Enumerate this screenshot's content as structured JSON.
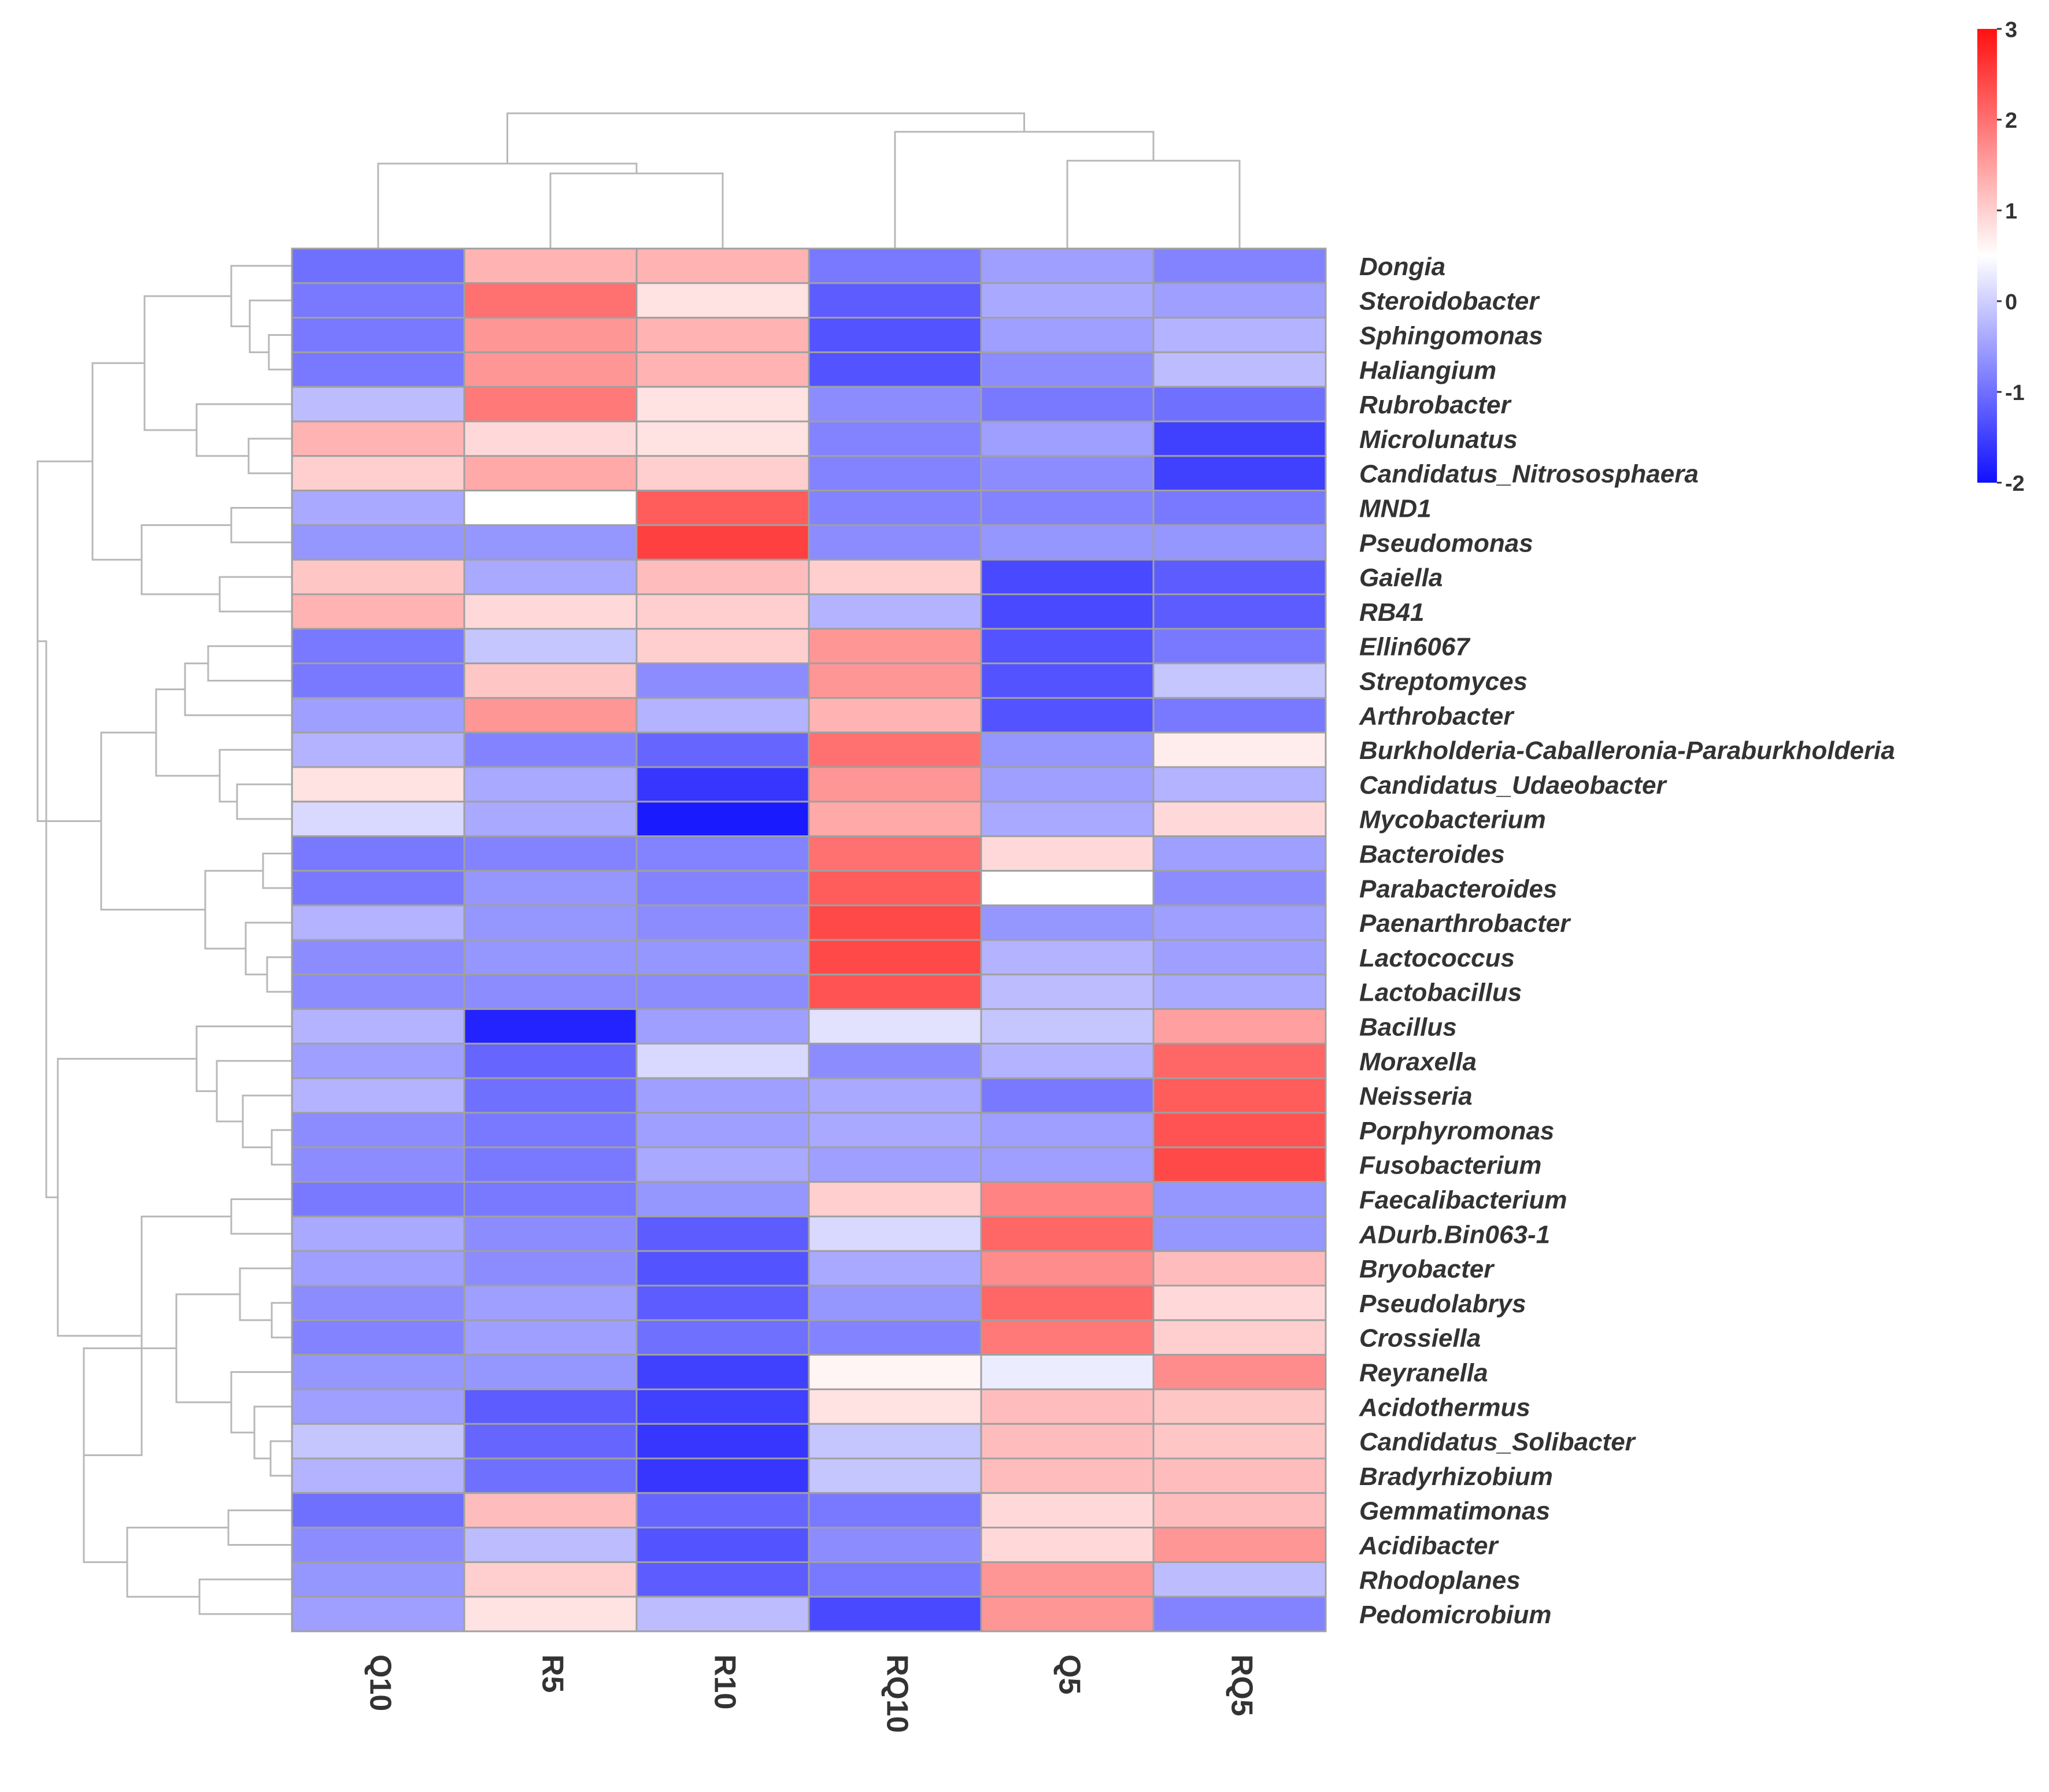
{
  "chart_data": {
    "type": "heatmap",
    "title": "",
    "columns": [
      "Q10",
      "R5",
      "R10",
      "RQ10",
      "Q5",
      "RQ5"
    ],
    "rows": [
      "Dongia",
      "Steroidobacter",
      "Sphingomonas",
      "Haliangium",
      "Rubrobacter",
      "Microlunatus",
      "Candidatus_Nitrososphaera",
      "MND1",
      "Pseudomonas",
      "Gaiella",
      "RB41",
      "Ellin6067",
      "Streptomyces",
      "Arthrobacter",
      "Burkholderia-Caballeronia-Paraburkholderia",
      "Candidatus_Udaeobacter",
      "Mycobacterium",
      "Bacteroides",
      "Parabacteroides",
      "Paenarthrobacter",
      "Lactococcus",
      "Lactobacillus",
      "Bacillus",
      "Moraxella",
      "Neisseria",
      "Porphyromonas",
      "Fusobacterium",
      "Faecalibacterium",
      "ADurb.Bin063-1",
      "Bryobacter",
      "Pseudolabrys",
      "Crossiella",
      "Reyranella",
      "Acidothermus",
      "Candidatus_Solibacter",
      "Bradyrhizobium",
      "Gemmatimonas",
      "Acidibacter",
      "Rhodoplanes",
      "Pedomicrobium"
    ],
    "values": [
      [
        -1.0,
        1.3,
        1.3,
        -0.9,
        -0.5,
        -0.8
      ],
      [
        -0.9,
        2.0,
        0.8,
        -1.2,
        -0.4,
        -0.5
      ],
      [
        -0.9,
        1.6,
        1.3,
        -1.3,
        -0.5,
        -0.3
      ],
      [
        -0.9,
        1.6,
        1.3,
        -1.3,
        -0.7,
        -0.2
      ],
      [
        -0.2,
        1.9,
        0.8,
        -0.7,
        -0.9,
        -1.0
      ],
      [
        1.3,
        0.9,
        0.8,
        -0.8,
        -0.5,
        -1.5
      ],
      [
        1.0,
        1.4,
        1.0,
        -0.8,
        -0.7,
        -1.5
      ],
      [
        -0.4,
        0.5,
        2.2,
        -0.8,
        -0.8,
        -0.9
      ],
      [
        -0.6,
        -0.6,
        2.5,
        -0.7,
        -0.6,
        -0.6
      ],
      [
        1.1,
        -0.4,
        1.2,
        1.0,
        -1.4,
        -1.2
      ],
      [
        1.3,
        0.9,
        1.0,
        -0.3,
        -1.4,
        -1.2
      ],
      [
        -0.9,
        -0.1,
        1.0,
        1.6,
        -1.3,
        -0.9
      ],
      [
        -0.9,
        1.1,
        -0.7,
        1.6,
        -1.3,
        -0.1
      ],
      [
        -0.5,
        1.6,
        -0.3,
        1.3,
        -1.3,
        -0.9
      ],
      [
        -0.3,
        -0.8,
        -1.1,
        2.0,
        -0.6,
        0.7
      ],
      [
        0.8,
        -0.4,
        -1.6,
        1.6,
        -0.5,
        -0.3
      ],
      [
        0.1,
        -0.4,
        -1.9,
        1.4,
        -0.4,
        0.9
      ],
      [
        -0.9,
        -0.8,
        -0.8,
        2.0,
        0.9,
        -0.5
      ],
      [
        -0.9,
        -0.6,
        -0.8,
        2.2,
        0.5,
        -0.7
      ],
      [
        -0.3,
        -0.6,
        -0.7,
        2.4,
        -0.6,
        -0.5
      ],
      [
        -0.7,
        -0.6,
        -0.6,
        2.4,
        -0.3,
        -0.5
      ],
      [
        -0.7,
        -0.7,
        -0.7,
        2.3,
        -0.2,
        -0.4
      ],
      [
        -0.3,
        -1.8,
        -0.5,
        0.2,
        -0.1,
        1.5
      ],
      [
        -0.5,
        -1.1,
        0.1,
        -0.7,
        -0.3,
        2.1
      ],
      [
        -0.3,
        -1.0,
        -0.5,
        -0.4,
        -0.9,
        2.2
      ],
      [
        -0.7,
        -0.9,
        -0.5,
        -0.4,
        -0.5,
        2.3
      ],
      [
        -0.7,
        -0.9,
        -0.4,
        -0.5,
        -0.5,
        2.4
      ],
      [
        -0.9,
        -0.9,
        -0.6,
        1.0,
        1.8,
        -0.6
      ],
      [
        -0.4,
        -0.7,
        -1.2,
        0.1,
        2.1,
        -0.6
      ],
      [
        -0.5,
        -0.7,
        -1.3,
        -0.4,
        1.7,
        1.2
      ],
      [
        -0.7,
        -0.5,
        -1.2,
        -0.6,
        2.1,
        0.9
      ],
      [
        -0.8,
        -0.5,
        -1.0,
        -0.8,
        1.9,
        1.0
      ],
      [
        -0.6,
        -0.6,
        -1.5,
        0.6,
        0.3,
        1.7
      ],
      [
        -0.5,
        -1.2,
        -1.5,
        0.8,
        1.2,
        1.1
      ],
      [
        -0.1,
        -1.1,
        -1.6,
        -0.1,
        1.2,
        1.1
      ],
      [
        -0.3,
        -1.0,
        -1.6,
        -0.1,
        1.2,
        1.2
      ],
      [
        -1.0,
        1.2,
        -1.1,
        -0.9,
        0.9,
        1.2
      ],
      [
        -0.7,
        -0.2,
        -1.3,
        -0.7,
        0.9,
        1.6
      ],
      [
        -0.6,
        1.0,
        -1.2,
        -0.9,
        1.6,
        -0.2
      ],
      [
        -0.5,
        0.8,
        -0.2,
        -1.4,
        1.6,
        -0.8
      ]
    ],
    "color_scale": {
      "min": -2,
      "mid": 0.5,
      "max": 3,
      "low_color": "#1010ff",
      "mid_color": "#ffffff",
      "high_color": "#ff1010",
      "ticks": [
        "3",
        "2",
        "1",
        "0",
        "-1",
        "-2"
      ],
      "tick_values": [
        3,
        2,
        1,
        0,
        -1,
        -2
      ]
    },
    "column_dendrogram": "((Q10,(R5,R10)),(RQ10,(Q5,RQ5)))",
    "row_dendrogram": "clustered"
  }
}
